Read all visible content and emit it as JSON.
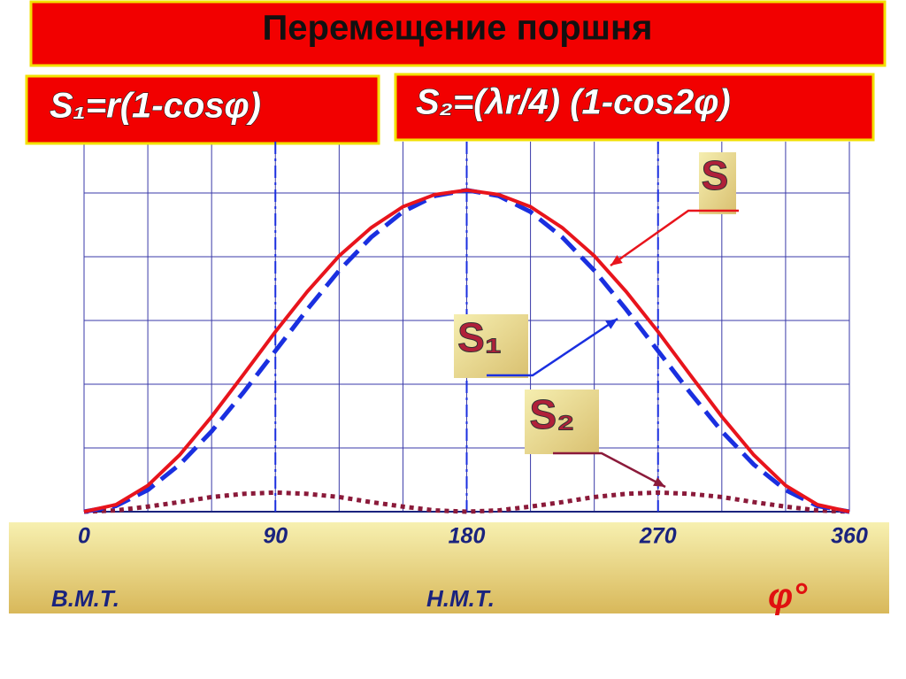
{
  "chart_data": {
    "type": "line",
    "title": "Перемещение поршня",
    "formulas": [
      "S₁=r(1-cosφ)",
      "S₂=(λr/4) (1-cos2φ)"
    ],
    "x": [
      0,
      15,
      30,
      45,
      60,
      75,
      90,
      105,
      120,
      135,
      150,
      165,
      180,
      195,
      210,
      225,
      240,
      255,
      270,
      285,
      300,
      315,
      330,
      345,
      360
    ],
    "series": [
      {
        "name": "S",
        "color": "#e8141c",
        "style": "solid",
        "values": [
          0,
          0.11,
          0.41,
          0.89,
          1.49,
          2.15,
          2.82,
          3.45,
          4.01,
          4.45,
          4.78,
          4.97,
          5.04,
          4.97,
          4.78,
          4.45,
          4.01,
          3.45,
          2.82,
          2.15,
          1.49,
          0.89,
          0.41,
          0.11,
          0
        ]
      },
      {
        "name": "S₁",
        "color": "#1a2fe0",
        "style": "dashed",
        "values": [
          0,
          0.09,
          0.34,
          0.74,
          1.26,
          1.87,
          2.52,
          3.17,
          3.78,
          4.3,
          4.7,
          4.95,
          5.04,
          4.95,
          4.7,
          4.3,
          3.78,
          3.17,
          2.52,
          1.87,
          1.26,
          0.74,
          0.34,
          0.09,
          0
        ]
      },
      {
        "name": "S₂",
        "color": "#8b1a3a",
        "style": "dotted",
        "values": [
          0,
          0.02,
          0.08,
          0.15,
          0.23,
          0.28,
          0.3,
          0.28,
          0.23,
          0.15,
          0.08,
          0.02,
          0,
          0.02,
          0.08,
          0.15,
          0.23,
          0.28,
          0.3,
          0.28,
          0.23,
          0.15,
          0.08,
          0.02,
          0
        ]
      }
    ],
    "xlim": [
      0,
      360
    ],
    "xticks": [
      0,
      90,
      180,
      270,
      360
    ],
    "ylim": [
      0,
      5.8
    ],
    "x_label": "φ°",
    "annotations": [
      "В.М.Т.",
      "Н.М.Т."
    ]
  }
}
